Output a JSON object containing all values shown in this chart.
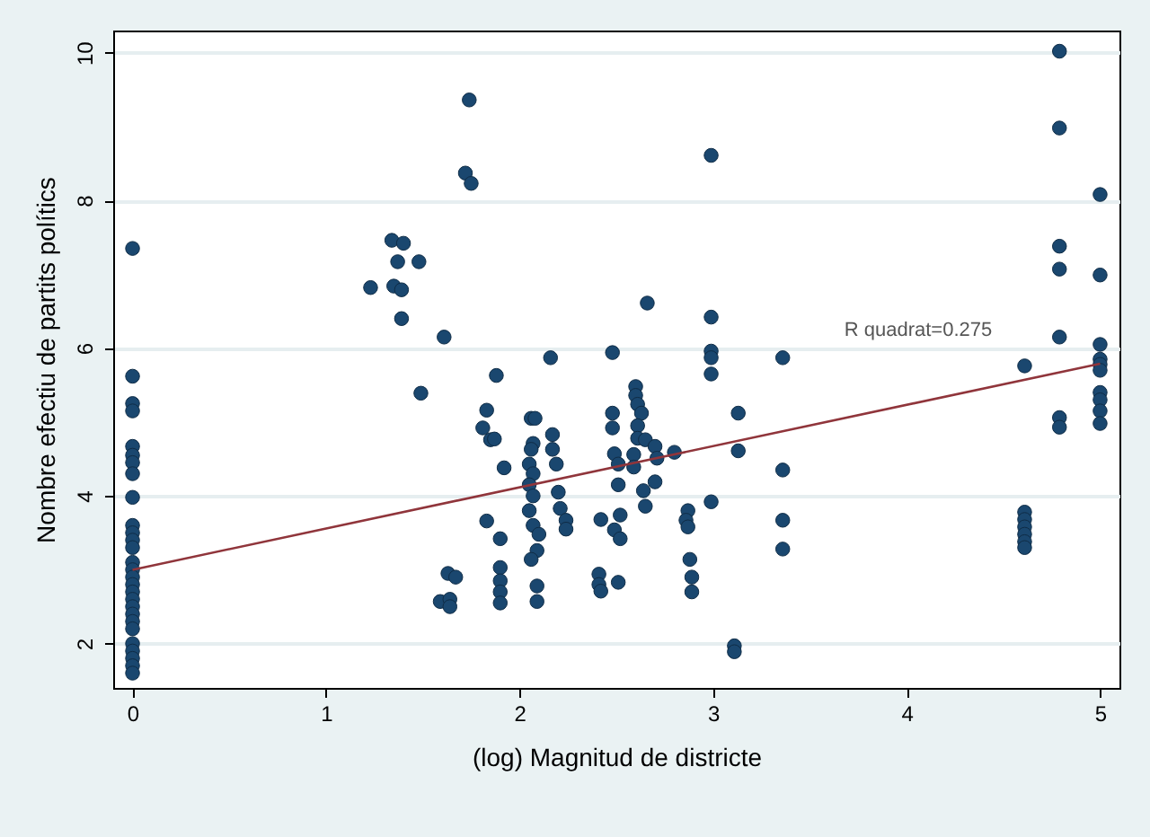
{
  "chart_data": {
    "type": "scatter",
    "xlabel": "(log) Magnitud de districte",
    "ylabel": "Nombre efectiu de partits polítics",
    "xlim": [
      -0.1,
      5.1
    ],
    "ylim": [
      1.4,
      10.3
    ],
    "xticks": [
      0,
      1,
      2,
      3,
      4,
      5
    ],
    "yticks": [
      2,
      4,
      6,
      8,
      10
    ],
    "grid": "y",
    "annotations": [
      "R quadrat=0.275"
    ],
    "series": [
      {
        "color": "#1a476f",
        "marker": "circle",
        "x": [
          0,
          0,
          0,
          0,
          0,
          0,
          0,
          0,
          0,
          0,
          0,
          0,
          0,
          0,
          0,
          0,
          0,
          0,
          0,
          0,
          0,
          0,
          0,
          0,
          0,
          0,
          0,
          0,
          1.34,
          1.4,
          1.37,
          1.48,
          1.23,
          1.35,
          1.39,
          1.39,
          1.61,
          1.49,
          1.63,
          1.67,
          1.59,
          1.64,
          1.64,
          1.74,
          1.72,
          1.75,
          2.99,
          1.88,
          1.83,
          1.81,
          1.85,
          1.87,
          1.92,
          1.83,
          1.9,
          1.9,
          1.9,
          1.9,
          1.9,
          2.16,
          2.06,
          2.08,
          2.07,
          2.06,
          2.17,
          2.17,
          2.19,
          2.05,
          2.07,
          2.05,
          2.07,
          2.2,
          2.21,
          2.24,
          2.24,
          2.05,
          2.07,
          2.1,
          2.09,
          2.06,
          2.09,
          2.09,
          2.48,
          2.48,
          2.48,
          2.49,
          2.51,
          2.51,
          2.42,
          2.49,
          2.52,
          2.52,
          2.41,
          2.41,
          2.42,
          2.51,
          2.66,
          2.6,
          2.6,
          2.61,
          2.63,
          2.61,
          2.61,
          2.65,
          2.7,
          2.71,
          2.59,
          2.59,
          2.64,
          2.65,
          2.7,
          2.8,
          2.87,
          2.86,
          2.87,
          2.88,
          2.89,
          2.89,
          2.99,
          2.99,
          2.99,
          2.99,
          2.99,
          3.11,
          3.11,
          3.13,
          3.13,
          3.36,
          3.36,
          3.36,
          3.36,
          4.61,
          4.61,
          4.61,
          4.61,
          4.61,
          4.61,
          4.61,
          4.79,
          4.79,
          4.79,
          4.79,
          4.79,
          4.79,
          4.79,
          5,
          5,
          5,
          5,
          5,
          5,
          5,
          5,
          5,
          5
        ],
        "values": [
          7.35,
          5.62,
          5.25,
          5.15,
          4.67,
          4.55,
          4.45,
          4.3,
          3.98,
          3.6,
          3.5,
          3.4,
          3.3,
          3.1,
          3.0,
          2.9,
          2.8,
          2.7,
          2.6,
          2.5,
          2.4,
          2.3,
          2.2,
          2.0,
          1.9,
          1.8,
          1.7,
          1.6,
          7.46,
          7.42,
          7.17,
          7.17,
          6.82,
          6.84,
          6.79,
          6.4,
          6.15,
          5.39,
          2.95,
          2.9,
          2.57,
          2.6,
          2.5,
          9.36,
          8.37,
          8.23,
          8.61,
          5.63,
          5.16,
          4.92,
          4.76,
          4.77,
          4.38,
          3.66,
          3.42,
          3.03,
          2.85,
          2.7,
          2.55,
          5.87,
          5.05,
          5.05,
          4.71,
          4.63,
          4.83,
          4.63,
          4.43,
          4.43,
          4.3,
          4.15,
          4.0,
          4.05,
          3.83,
          3.67,
          3.55,
          3.8,
          3.6,
          3.48,
          3.26,
          3.14,
          2.78,
          2.57,
          5.94,
          5.12,
          4.92,
          4.57,
          4.43,
          4.15,
          3.68,
          3.54,
          3.42,
          3.74,
          2.94,
          2.8,
          2.71,
          2.83,
          6.61,
          5.48,
          5.36,
          5.24,
          5.12,
          4.95,
          4.78,
          4.76,
          4.67,
          4.51,
          4.56,
          4.39,
          4.07,
          3.86,
          4.19,
          4.59,
          3.8,
          3.67,
          3.58,
          3.14,
          2.9,
          2.7,
          6.42,
          5.96,
          5.87,
          5.65,
          3.92,
          1.97,
          1.89,
          5.12,
          4.61,
          5.87,
          4.35,
          3.67,
          3.28,
          5.76,
          3.78,
          3.68,
          3.58,
          3.48,
          3.38,
          3.3,
          10.02,
          8.98,
          7.38,
          7.07,
          6.15,
          5.06,
          4.93,
          8.08,
          6.99,
          6.05,
          5.85,
          5.78,
          5.7,
          5.4,
          5.3,
          5.15,
          4.98
        ]
      },
      {
        "type": "line",
        "color": "#90353b",
        "line_style": "solid",
        "x": [
          0,
          5
        ],
        "values": [
          3.0,
          5.79
        ]
      }
    ]
  }
}
